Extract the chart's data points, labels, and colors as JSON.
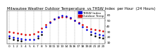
{
  "title": "Milwaukee Weather Outdoor Temperature  vs THSW Index  per Hour  (24 Hours)",
  "hours": [
    0,
    1,
    2,
    3,
    4,
    5,
    6,
    7,
    8,
    9,
    10,
    11,
    12,
    13,
    14,
    15,
    16,
    17,
    18,
    19,
    20,
    21,
    22,
    23
  ],
  "temp_data": [
    [
      0,
      30
    ],
    [
      1,
      28
    ],
    [
      2,
      27
    ],
    [
      3,
      26
    ],
    [
      4,
      25
    ],
    [
      5,
      25
    ],
    [
      6,
      26
    ],
    [
      7,
      30
    ],
    [
      8,
      36
    ],
    [
      9,
      42
    ],
    [
      10,
      48
    ],
    [
      11,
      52
    ],
    [
      12,
      55
    ],
    [
      13,
      57
    ],
    [
      14,
      56
    ],
    [
      15,
      54
    ],
    [
      16,
      50
    ],
    [
      17,
      46
    ],
    [
      18,
      42
    ],
    [
      19,
      38
    ],
    [
      20,
      35
    ],
    [
      21,
      33
    ],
    [
      22,
      32
    ],
    [
      23,
      31
    ]
  ],
  "thsw_data": [
    [
      0,
      22
    ],
    [
      1,
      20
    ],
    [
      2,
      18
    ],
    [
      3,
      17
    ],
    [
      4,
      16
    ],
    [
      5,
      15
    ],
    [
      6,
      16
    ],
    [
      7,
      22
    ],
    [
      8,
      30
    ],
    [
      9,
      38
    ],
    [
      10,
      46
    ],
    [
      11,
      52
    ],
    [
      12,
      56
    ],
    [
      13,
      59
    ],
    [
      14,
      58
    ],
    [
      15,
      55
    ],
    [
      16,
      50
    ],
    [
      17,
      45
    ],
    [
      18,
      39
    ],
    [
      19,
      34
    ],
    [
      20,
      29
    ],
    [
      21,
      27
    ],
    [
      22,
      25
    ],
    [
      23,
      23
    ]
  ],
  "black_data": [
    [
      0,
      18
    ],
    [
      1,
      16
    ],
    [
      2,
      14
    ],
    [
      3,
      13
    ],
    [
      7,
      18
    ],
    [
      8,
      24
    ],
    [
      20,
      24
    ],
    [
      21,
      22
    ],
    [
      22,
      20
    ],
    [
      23,
      18
    ]
  ],
  "temp_color": "#dd0000",
  "thsw_color": "#0000dd",
  "black_color": "#000000",
  "grid_color": "#999999",
  "bg_color": "#ffffff",
  "ylim": [
    8,
    68
  ],
  "xlim": [
    -0.5,
    23.5
  ],
  "yticks": [
    10,
    20,
    30,
    40,
    50,
    60
  ],
  "ytick_labels": [
    "10",
    "20",
    "30",
    "40",
    "50",
    "60"
  ],
  "xtick_labels": [
    "0",
    "1",
    "2",
    "3",
    "4",
    "5",
    "6",
    "7",
    "8",
    "9",
    "10",
    "11",
    "12",
    "13",
    "14",
    "15",
    "16",
    "17",
    "18",
    "19",
    "20",
    "21",
    "22",
    "23"
  ],
  "legend_labels": [
    "THSW Index",
    "Outdoor Temp"
  ],
  "legend_colors": [
    "#0000dd",
    "#dd0000"
  ],
  "title_fontsize": 3.8,
  "tick_fontsize": 3.2,
  "marker_size": 1.8,
  "legend_fontsize": 3.2,
  "grid_hours": [
    0,
    2,
    4,
    6,
    8,
    10,
    12,
    14,
    16,
    18,
    20,
    22
  ]
}
